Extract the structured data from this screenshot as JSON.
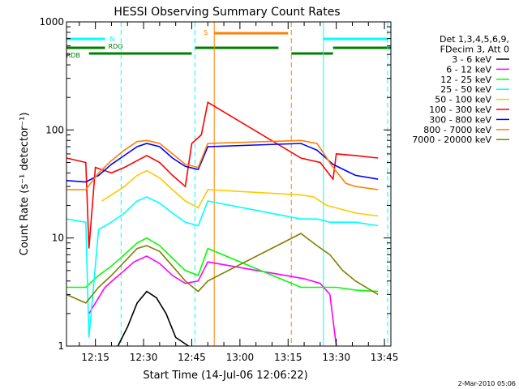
{
  "chart_data": {
    "type": "line",
    "title": "HESSI Observing Summary Count Rates",
    "xlabel": "Start Time (14-Jul-06 12:06:22)",
    "ylabel": "Count Rate (s⁻¹ detector⁻¹)",
    "x_range": [
      "12:06",
      "13:47"
    ],
    "y_range": [
      1,
      1000
    ],
    "y_scale": "log",
    "grid": false,
    "x_ticks": [
      "12:15",
      "12:30",
      "12:45",
      "13:00",
      "13:15",
      "13:30",
      "13:45"
    ],
    "y_ticks": [
      "1",
      "10",
      "100",
      "1000"
    ],
    "legend_position": "right",
    "legend_header": [
      "Det 1,3,4,5,6,9,",
      "FDecim 3, Att 0"
    ],
    "series": [
      {
        "name": "3 - 6 keV",
        "color": "#000000",
        "points": [
          [
            "12:22",
            1
          ],
          [
            "12:25",
            1.5
          ],
          [
            "12:28",
            2.5
          ],
          [
            "12:31",
            3.2
          ],
          [
            "12:34",
            2.8
          ],
          [
            "12:37",
            2.0
          ],
          [
            "12:40",
            1.2
          ],
          [
            "12:44",
            1.0
          ]
        ]
      },
      {
        "name": "6 - 12 keV",
        "color": "#ff00ff",
        "points": [
          [
            "12:13",
            2.0
          ],
          [
            "12:18",
            3.5
          ],
          [
            "12:21",
            4.2
          ],
          [
            "12:24",
            5.0
          ],
          [
            "12:27",
            6.0
          ],
          [
            "12:31",
            6.8
          ],
          [
            "12:35",
            5.8
          ],
          [
            "12:39",
            4.5
          ],
          [
            "12:43",
            3.8
          ],
          [
            "12:47",
            4.0
          ],
          [
            "12:50",
            6.0
          ],
          [
            "13:20",
            4.2
          ],
          [
            "13:25",
            3.8
          ],
          [
            "13:28",
            3.0
          ],
          [
            "13:30",
            1.0
          ]
        ]
      },
      {
        "name": "12 - 25 keV",
        "color": "#00ff00",
        "points": [
          [
            "12:06",
            3.5
          ],
          [
            "12:12",
            3.5
          ],
          [
            "12:16",
            4.5
          ],
          [
            "12:20",
            5.5
          ],
          [
            "12:24",
            7.0
          ],
          [
            "12:28",
            9.0
          ],
          [
            "12:31",
            10.0
          ],
          [
            "12:35",
            8.5
          ],
          [
            "12:39",
            6.5
          ],
          [
            "12:43",
            5.0
          ],
          [
            "12:47",
            4.5
          ],
          [
            "12:50",
            8.0
          ],
          [
            "13:19",
            3.5
          ],
          [
            "13:26",
            3.5
          ],
          [
            "13:30",
            3.5
          ],
          [
            "13:36",
            3.3
          ],
          [
            "13:43",
            3.2
          ]
        ]
      },
      {
        "name": "25 - 50 keV",
        "color": "#00ffff",
        "points": [
          [
            "12:06",
            15
          ],
          [
            "12:12",
            14
          ],
          [
            "12:13",
            1.2
          ],
          [
            "12:16",
            12
          ],
          [
            "12:20",
            14
          ],
          [
            "12:24",
            17
          ],
          [
            "12:28",
            22
          ],
          [
            "12:31",
            24
          ],
          [
            "12:35",
            21
          ],
          [
            "12:39",
            17
          ],
          [
            "12:43",
            14
          ],
          [
            "12:47",
            13
          ],
          [
            "12:50",
            22
          ],
          [
            "13:19",
            15
          ],
          [
            "13:24",
            15
          ],
          [
            "13:28",
            14
          ],
          [
            "13:30",
            14
          ],
          [
            "13:36",
            14
          ],
          [
            "13:43",
            13
          ]
        ]
      },
      {
        "name": "50 - 100 keV",
        "color": "#ffc800",
        "points": [
          [
            "12:17",
            22
          ],
          [
            "12:20",
            25
          ],
          [
            "12:24",
            30
          ],
          [
            "12:28",
            38
          ],
          [
            "12:31",
            42
          ],
          [
            "12:35",
            36
          ],
          [
            "12:39",
            28
          ],
          [
            "12:43",
            22
          ],
          [
            "12:47",
            19
          ],
          [
            "12:50",
            28
          ],
          [
            "13:19",
            25
          ],
          [
            "13:23",
            24
          ],
          [
            "13:27",
            20
          ],
          [
            "13:30",
            19
          ],
          [
            "13:36",
            17
          ],
          [
            "13:43",
            16
          ]
        ]
      },
      {
        "name": "100 - 300 keV",
        "color": "#ff0000",
        "points": [
          [
            "12:06",
            55
          ],
          [
            "12:12",
            50
          ],
          [
            "12:13",
            8
          ],
          [
            "12:15",
            45
          ],
          [
            "12:20",
            40
          ],
          [
            "12:24",
            45
          ],
          [
            "12:28",
            52
          ],
          [
            "12:31",
            58
          ],
          [
            "12:35",
            50
          ],
          [
            "12:39",
            38
          ],
          [
            "12:43",
            30
          ],
          [
            "12:45",
            75
          ],
          [
            "12:48",
            90
          ],
          [
            "12:50",
            180
          ],
          [
            "13:19",
            55
          ],
          [
            "13:25",
            50
          ],
          [
            "13:29",
            35
          ],
          [
            "13:30",
            60
          ],
          [
            "13:36",
            58
          ],
          [
            "13:43",
            55
          ]
        ]
      },
      {
        "name": "300 - 800 keV",
        "color": "#0000ff",
        "points": [
          [
            "12:06",
            34
          ],
          [
            "12:12",
            33
          ],
          [
            "12:16",
            38
          ],
          [
            "12:20",
            48
          ],
          [
            "12:24",
            58
          ],
          [
            "12:28",
            70
          ],
          [
            "12:31",
            75
          ],
          [
            "12:35",
            70
          ],
          [
            "12:39",
            55
          ],
          [
            "12:43",
            46
          ],
          [
            "12:47",
            43
          ],
          [
            "12:50",
            70
          ],
          [
            "13:19",
            75
          ],
          [
            "13:24",
            65
          ],
          [
            "13:29",
            48
          ],
          [
            "13:33",
            42
          ],
          [
            "13:36",
            38
          ],
          [
            "13:43",
            35
          ]
        ]
      },
      {
        "name": "800 - 7000 keV",
        "color": "#ff8000",
        "points": [
          [
            "12:06",
            28
          ],
          [
            "12:12",
            28
          ],
          [
            "12:16",
            40
          ],
          [
            "12:20",
            52
          ],
          [
            "12:24",
            65
          ],
          [
            "12:28",
            78
          ],
          [
            "12:31",
            80
          ],
          [
            "12:35",
            75
          ],
          [
            "12:39",
            60
          ],
          [
            "12:43",
            48
          ],
          [
            "12:47",
            45
          ],
          [
            "12:50",
            75
          ],
          [
            "13:19",
            80
          ],
          [
            "13:24",
            75
          ],
          [
            "13:29",
            45
          ],
          [
            "13:33",
            32
          ],
          [
            "13:36",
            30
          ],
          [
            "13:43",
            28
          ]
        ]
      },
      {
        "name": "7000 - 20000 keV",
        "color": "#808000",
        "points": [
          [
            "12:06",
            3.0
          ],
          [
            "12:12",
            2.5
          ],
          [
            "12:16",
            3.5
          ],
          [
            "12:20",
            4.5
          ],
          [
            "12:24",
            6.0
          ],
          [
            "12:28",
            8.0
          ],
          [
            "12:31",
            8.5
          ],
          [
            "12:35",
            7.5
          ],
          [
            "12:39",
            5.5
          ],
          [
            "12:43",
            4.0
          ],
          [
            "12:47",
            3.2
          ],
          [
            "12:50",
            4.0
          ],
          [
            "13:19",
            11
          ],
          [
            "13:24",
            8.5
          ],
          [
            "13:28",
            7.0
          ],
          [
            "13:32",
            5.0
          ],
          [
            "13:36",
            4.0
          ],
          [
            "13:43",
            3.0
          ]
        ]
      }
    ],
    "vertical_markers": [
      {
        "time": "12:23",
        "color": "#00ffff",
        "style": "dashed"
      },
      {
        "time": "12:46",
        "color": "#00ffff",
        "style": "dashed"
      },
      {
        "time": "12:52",
        "color": "#ff8000",
        "style": "solid"
      },
      {
        "time": "13:16",
        "color": "#ff8000",
        "style": "dashed"
      },
      {
        "time": "13:26",
        "color": "#00ffff",
        "style": "solid"
      },
      {
        "time": "13:46",
        "color": "#00ffff",
        "style": "dashed"
      }
    ],
    "flag_bars": [
      {
        "label": "N",
        "color": "#00ffff",
        "segments": [
          [
            "12:06",
            "12:18"
          ],
          [
            "13:26",
            "13:46"
          ]
        ]
      },
      {
        "label": "RDO",
        "color": "#008000",
        "segments": [
          [
            "12:06",
            "12:18"
          ],
          [
            "12:46",
            "13:12"
          ],
          [
            "13:29",
            "13:47"
          ]
        ]
      },
      {
        "label": "RDB",
        "color": "#008000",
        "segments": [
          [
            "12:13",
            "12:45"
          ],
          [
            "13:16",
            "13:29"
          ]
        ]
      },
      {
        "label": "S",
        "color": "#ff8000",
        "segments": [
          [
            "12:52",
            "13:15"
          ]
        ]
      }
    ]
  },
  "footer": {
    "date": "2-Mar-2010 05:06"
  }
}
